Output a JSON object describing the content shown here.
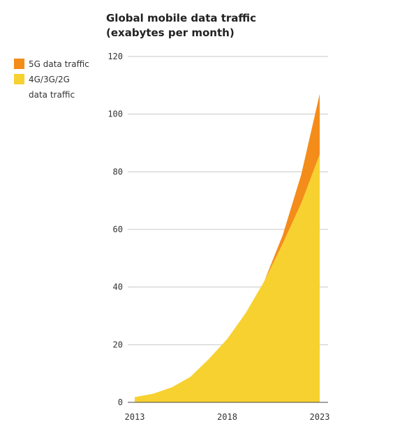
{
  "chart_data": {
    "type": "area",
    "stacked": true,
    "title_lines": [
      "Global mobile data traffic",
      "(exabytes per month)"
    ],
    "x": [
      2013,
      2014,
      2015,
      2016,
      2017,
      2018,
      2019,
      2020,
      2021,
      2022,
      2023
    ],
    "x_ticks": [
      "2013",
      "2018",
      "2023"
    ],
    "y_ticks": [
      "0",
      "20",
      "40",
      "60",
      "80",
      "100",
      "120"
    ],
    "ylim": [
      0,
      120
    ],
    "xlim": [
      2013,
      2023
    ],
    "grid": true,
    "legend_position": "top-left",
    "series": [
      {
        "name_lines": [
          "4G/3G/2G",
          "data traffic"
        ],
        "color": "#f7d130",
        "values": [
          1.8,
          3,
          5.2,
          8.8,
          15,
          22,
          31,
          42,
          55,
          69,
          86
        ]
      },
      {
        "name_lines": [
          "5G data traffic"
        ],
        "color": "#f48c1a",
        "values": [
          0,
          0,
          0,
          0,
          0,
          0,
          0,
          0,
          3,
          10,
          21
        ]
      }
    ]
  }
}
